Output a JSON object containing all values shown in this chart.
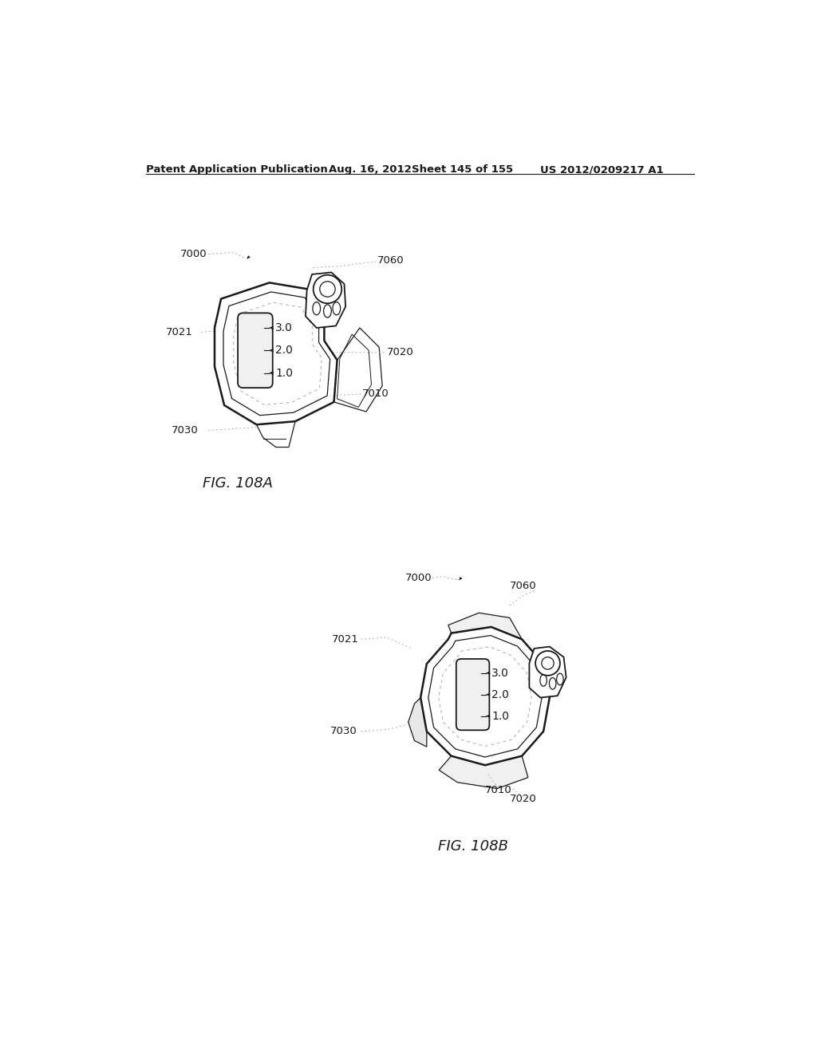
{
  "background_color": "#ffffff",
  "header_text": "Patent Application Publication",
  "header_date": "Aug. 16, 2012",
  "header_sheet": "Sheet 145 of 155",
  "header_patent": "US 2012/0209217 A1",
  "fig_a_label": "FIG. 108A",
  "fig_b_label": "FIG. 108B",
  "line_color": "#1a1a1a",
  "dashed_color": "#aaaaaa",
  "label_fontsize": 9.5,
  "header_fontsize": 9.5,
  "fig_label_fontsize": 13
}
